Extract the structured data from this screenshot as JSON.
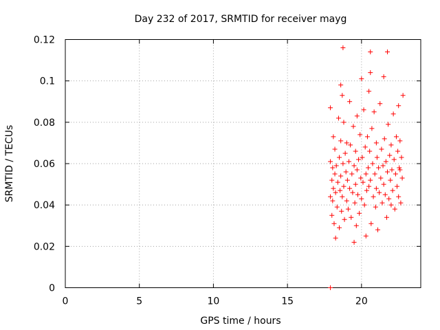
{
  "chart_data": {
    "type": "scatter",
    "title": "Day 232 of 2017, SRMTID for receiver mayg",
    "xlabel": "GPS time / hours",
    "ylabel": "SRMTID / TECUs",
    "xlim": [
      0,
      24
    ],
    "ylim": [
      0,
      0.12
    ],
    "x_ticks": [
      0,
      5,
      10,
      15,
      20
    ],
    "x_tick_labels": [
      "0",
      "5",
      "10",
      "15",
      "20"
    ],
    "y_ticks": [
      0,
      0.02,
      0.04,
      0.06,
      0.08,
      0.1,
      0.12
    ],
    "y_tick_labels": [
      "0",
      "0.02",
      "0.04",
      "0.06",
      "0.08",
      "0.1",
      "0.12"
    ],
    "grid": true,
    "marker": "+",
    "color": "#ff0000",
    "series": [
      {
        "name": "SRMTID",
        "x": [
          17.9,
          17.9,
          17.9,
          17.9,
          18.0,
          18.0,
          18.05,
          18.05,
          18.1,
          18.1,
          18.15,
          18.2,
          18.2,
          18.25,
          18.25,
          18.3,
          18.35,
          18.4,
          18.45,
          18.5,
          18.5,
          18.55,
          18.6,
          18.6,
          18.65,
          18.7,
          18.7,
          18.75,
          18.8,
          18.8,
          18.85,
          18.9,
          18.95,
          19.0,
          19.0,
          19.05,
          19.1,
          19.15,
          19.2,
          19.25,
          19.3,
          19.35,
          19.4,
          19.45,
          19.5,
          19.5,
          19.55,
          19.6,
          19.6,
          19.65,
          19.7,
          19.75,
          19.8,
          19.85,
          19.9,
          19.95,
          20.0,
          20.0,
          20.05,
          20.1,
          20.15,
          20.2,
          20.25,
          20.3,
          20.35,
          20.4,
          20.45,
          20.5,
          20.5,
          20.55,
          20.6,
          20.6,
          20.65,
          20.7,
          20.75,
          20.8,
          20.85,
          20.9,
          20.95,
          21.0,
          21.0,
          21.05,
          21.1,
          21.15,
          21.2,
          21.25,
          21.3,
          21.35,
          21.4,
          21.45,
          21.5,
          21.5,
          21.55,
          21.6,
          21.65,
          21.7,
          21.75,
          21.8,
          21.85,
          21.9,
          21.95,
          22.0,
          22.0,
          22.05,
          22.1,
          22.15,
          22.2,
          22.25,
          22.3,
          22.35,
          22.4,
          22.45,
          22.5,
          22.5,
          22.55,
          22.6,
          22.65,
          22.7,
          22.75,
          22.8,
          18.75,
          21.75,
          20.6,
          19.2,
          20.3,
          18.6,
          22.6,
          19.7
        ],
        "y": [
          0.0,
          0.061,
          0.044,
          0.087,
          0.052,
          0.035,
          0.058,
          0.042,
          0.073,
          0.048,
          0.031,
          0.055,
          0.067,
          0.024,
          0.046,
          0.059,
          0.039,
          0.051,
          0.082,
          0.063,
          0.029,
          0.047,
          0.071,
          0.054,
          0.037,
          0.093,
          0.044,
          0.06,
          0.08,
          0.049,
          0.033,
          0.065,
          0.056,
          0.042,
          0.07,
          0.052,
          0.038,
          0.061,
          0.048,
          0.069,
          0.034,
          0.055,
          0.046,
          0.078,
          0.059,
          0.022,
          0.041,
          0.05,
          0.066,
          0.03,
          0.057,
          0.045,
          0.062,
          0.036,
          0.074,
          0.053,
          0.101,
          0.043,
          0.063,
          0.051,
          0.086,
          0.04,
          0.068,
          0.055,
          0.047,
          0.073,
          0.058,
          0.095,
          0.049,
          0.066,
          0.104,
          0.052,
          0.031,
          0.077,
          0.06,
          0.044,
          0.085,
          0.055,
          0.039,
          0.07,
          0.048,
          0.063,
          0.028,
          0.058,
          0.046,
          0.089,
          0.053,
          0.067,
          0.041,
          0.059,
          0.102,
          0.05,
          0.072,
          0.045,
          0.061,
          0.034,
          0.056,
          0.079,
          0.043,
          0.064,
          0.052,
          0.04,
          0.069,
          0.057,
          0.047,
          0.084,
          0.062,
          0.038,
          0.055,
          0.073,
          0.049,
          0.066,
          0.088,
          0.044,
          0.058,
          0.071,
          0.041,
          0.063,
          0.053,
          0.093,
          0.116,
          0.114,
          0.114,
          0.09,
          0.025,
          0.098,
          0.057,
          0.083
        ]
      }
    ]
  }
}
